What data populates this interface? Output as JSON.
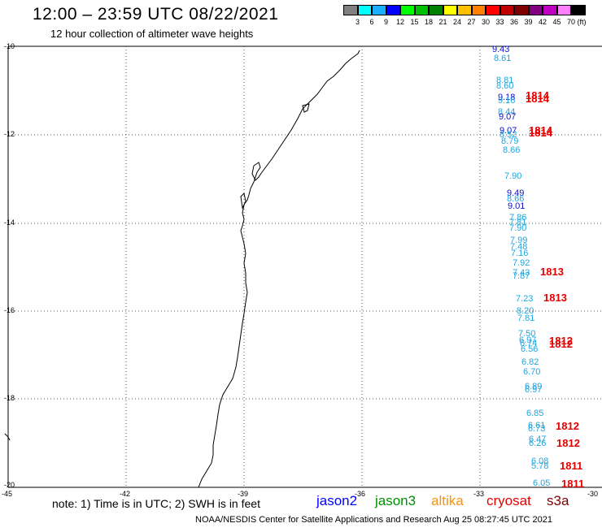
{
  "header": {
    "title": "12:00 – 23:59 UTC 08/22/2021",
    "subtitle": "12 hour collection of altimeter wave heights"
  },
  "colorbar": {
    "unit": "(ft)",
    "colors": [
      "#808080",
      "#00ffff",
      "#1ab0ff",
      "#0000ff",
      "#00ff00",
      "#00c000",
      "#008000",
      "#ffff00",
      "#ffc000",
      "#ff8000",
      "#ff0000",
      "#c00000",
      "#800000",
      "#800080",
      "#c000c0",
      "#ff80ff",
      "#000000"
    ],
    "labels": [
      "3",
      "6",
      "9",
      "12",
      "15",
      "18",
      "21",
      "24",
      "27",
      "30",
      "33",
      "36",
      "39",
      "42",
      "45",
      "70"
    ]
  },
  "axes": {
    "lat_labels": [
      "-10",
      "-12",
      "-14",
      "-16",
      "-18",
      "-20"
    ],
    "lon_labels": [
      "-45",
      "-42",
      "-39",
      "-36",
      "-33",
      "-30"
    ]
  },
  "wave_heights": [
    {
      "v": "9.43",
      "c": "blue"
    },
    {
      "v": "8.61",
      "c": "cyan"
    },
    {
      "v": "8.81",
      "c": "cyan"
    },
    {
      "v": "8.60",
      "c": "cyan"
    },
    {
      "v": "9.18",
      "c": "blue"
    },
    {
      "v": "9.16",
      "c": "cyan"
    },
    {
      "v": "8.44",
      "c": "cyan"
    },
    {
      "v": "9.07",
      "c": "blue"
    },
    {
      "v": "9.07",
      "c": "blue"
    },
    {
      "v": "8.52",
      "c": "cyan"
    },
    {
      "v": "8.79",
      "c": "cyan"
    },
    {
      "v": "8.66",
      "c": "cyan"
    },
    {
      "v": "7.90",
      "c": "cyan"
    },
    {
      "v": "9.49",
      "c": "blue"
    },
    {
      "v": "8.66",
      "c": "cyan"
    },
    {
      "v": "9.01",
      "c": "blue"
    },
    {
      "v": "7.86",
      "c": "cyan"
    },
    {
      "v": "7.81",
      "c": "cyan"
    },
    {
      "v": "7.90",
      "c": "cyan"
    },
    {
      "v": "7.99",
      "c": "cyan"
    },
    {
      "v": "7.48",
      "c": "cyan"
    },
    {
      "v": "7.16",
      "c": "cyan"
    },
    {
      "v": "7.92",
      "c": "cyan"
    },
    {
      "v": "7.43",
      "c": "cyan"
    },
    {
      "v": "7.87",
      "c": "cyan"
    },
    {
      "v": "7.23",
      "c": "cyan"
    },
    {
      "v": "8.20",
      "c": "cyan"
    },
    {
      "v": "7.81",
      "c": "cyan"
    },
    {
      "v": "7.50",
      "c": "cyan"
    },
    {
      "v": "6.97",
      "c": "cyan"
    },
    {
      "v": "6.74",
      "c": "cyan"
    },
    {
      "v": "6.56",
      "c": "cyan"
    },
    {
      "v": "6.82",
      "c": "cyan"
    },
    {
      "v": "6.70",
      "c": "cyan"
    },
    {
      "v": "6.89",
      "c": "cyan"
    },
    {
      "v": "6.97",
      "c": "cyan"
    },
    {
      "v": "6.85",
      "c": "cyan"
    },
    {
      "v": "6.61",
      "c": "cyan"
    },
    {
      "v": "6.73",
      "c": "cyan"
    },
    {
      "v": "6.47",
      "c": "cyan"
    },
    {
      "v": "6.26",
      "c": "cyan"
    },
    {
      "v": "6.08",
      "c": "cyan"
    },
    {
      "v": "5.78",
      "c": "cyan"
    },
    {
      "v": "6.05",
      "c": "cyan"
    }
  ],
  "pass_labels": [
    "1814",
    "1814",
    "1814",
    "1814",
    "1813",
    "1813",
    "1812",
    "1812",
    "1812",
    "1812",
    "1811",
    "1811"
  ],
  "note": "note: 1) Time is in UTC; 2) SWH is in feet",
  "satellites": [
    {
      "name": "jason2",
      "color": "#0000ff"
    },
    {
      "name": "jason3",
      "color": "#009000"
    },
    {
      "name": "altika",
      "color": "#ff9000"
    },
    {
      "name": "cryosat",
      "color": "#e60000"
    },
    {
      "name": "s3a",
      "color": "#800000"
    }
  ],
  "footer": "NOAA/NESDIS Center for Satellite Applications and Research    Aug 25 08:27:45 UTC 2021"
}
